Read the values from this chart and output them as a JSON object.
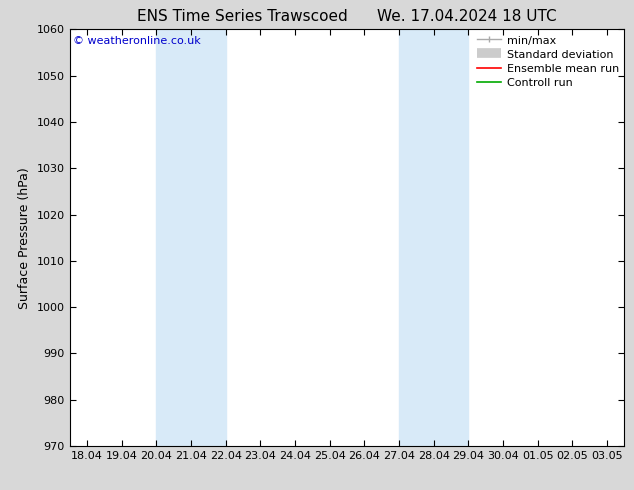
{
  "title": "ENS Time Series Trawscoed",
  "title2": "We. 17.04.2024 18 UTC",
  "ylabel": "Surface Pressure (hPa)",
  "ylim": [
    970,
    1060
  ],
  "yticks": [
    970,
    980,
    990,
    1000,
    1010,
    1020,
    1030,
    1040,
    1050,
    1060
  ],
  "xtick_labels": [
    "18.04",
    "19.04",
    "20.04",
    "21.04",
    "22.04",
    "23.04",
    "24.04",
    "25.04",
    "26.04",
    "27.04",
    "28.04",
    "29.04",
    "30.04",
    "01.05",
    "02.05",
    "03.05"
  ],
  "xtick_positions": [
    0,
    1,
    2,
    3,
    4,
    5,
    6,
    7,
    8,
    9,
    10,
    11,
    12,
    13,
    14,
    15
  ],
  "xlim": [
    -0.5,
    15.5
  ],
  "shaded_bands": [
    {
      "x_start": 2,
      "x_end": 4
    },
    {
      "x_start": 9,
      "x_end": 11
    }
  ],
  "shade_color": "#d8eaf8",
  "bg_color": "#ffffff",
  "fig_bg_color": "#d8d8d8",
  "copyright_text": "© weatheronline.co.uk",
  "copyright_color": "#0000cc",
  "title_fontsize": 11,
  "tick_fontsize": 8,
  "ylabel_fontsize": 9,
  "legend_fontsize": 8
}
